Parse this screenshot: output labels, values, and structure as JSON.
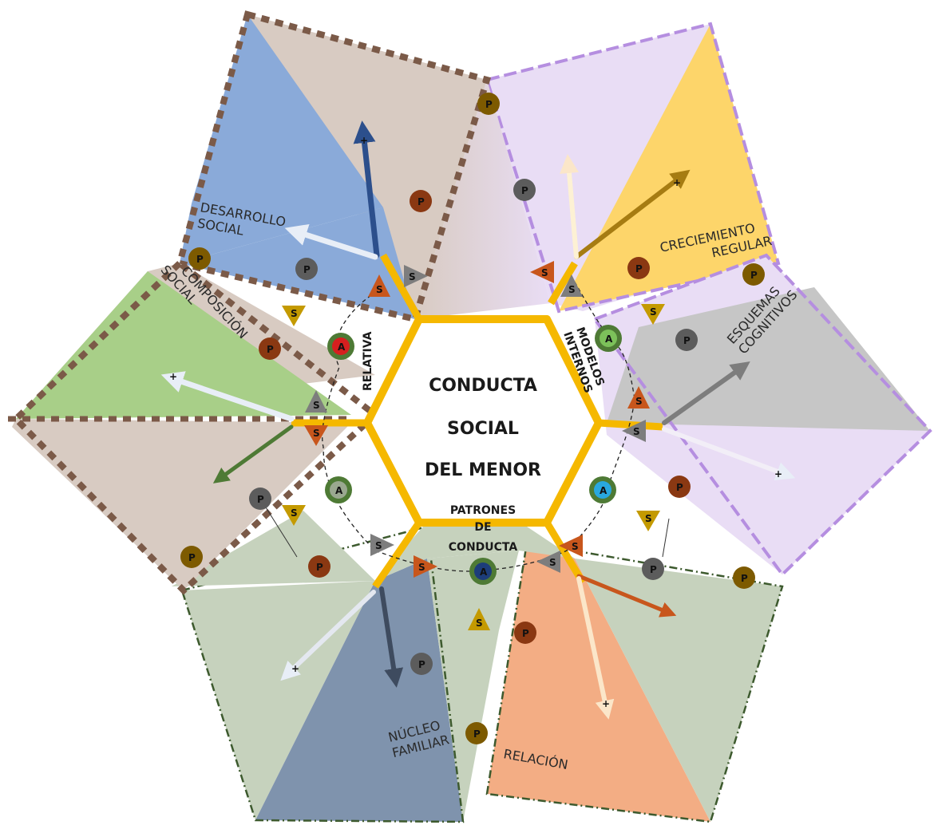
{
  "center": {
    "lines": [
      "CONDUCTA",
      "SOCIAL",
      "DEL MENOR"
    ]
  },
  "hex_labels": {
    "relativa": "RELATIVA",
    "modelos": [
      "MODELOS",
      "INTERNOS"
    ],
    "patrones": [
      "PATRONES",
      "DE",
      "CONDUCTA"
    ]
  },
  "petals": {
    "desarrollo": [
      "DESARROLLO",
      "SOCIAL"
    ],
    "composicion": [
      "COMPOSICIÓN",
      "SOCIAL"
    ],
    "crecimiento": [
      "CRECIEMIENTO",
      "REGULAR"
    ],
    "esquemas": [
      "ESQUEMAS",
      "COGNITIVOS"
    ],
    "nucleo": [
      "NÚCLEO",
      "FAMILIAR"
    ],
    "relacion": "RELACIÓN"
  },
  "markers": {
    "p": "P",
    "s": "S",
    "a": "A",
    "plus": "+"
  },
  "colors": {
    "hexagon": "#f5b800",
    "brown_frame": "#7b5a48",
    "lavender_frame": "#b58ee0",
    "green_frame": "#3d5a2e",
    "blue": "#8aaad9",
    "green": "#a8cf88",
    "yellow": "#fdd56a",
    "gray": "#c6c6c6",
    "slate": "#7f93ad",
    "orange": "#f3ad84",
    "beige": "#d8cbc2",
    "lavender": "#e9ddf5",
    "sage": "#c6d2bd"
  }
}
